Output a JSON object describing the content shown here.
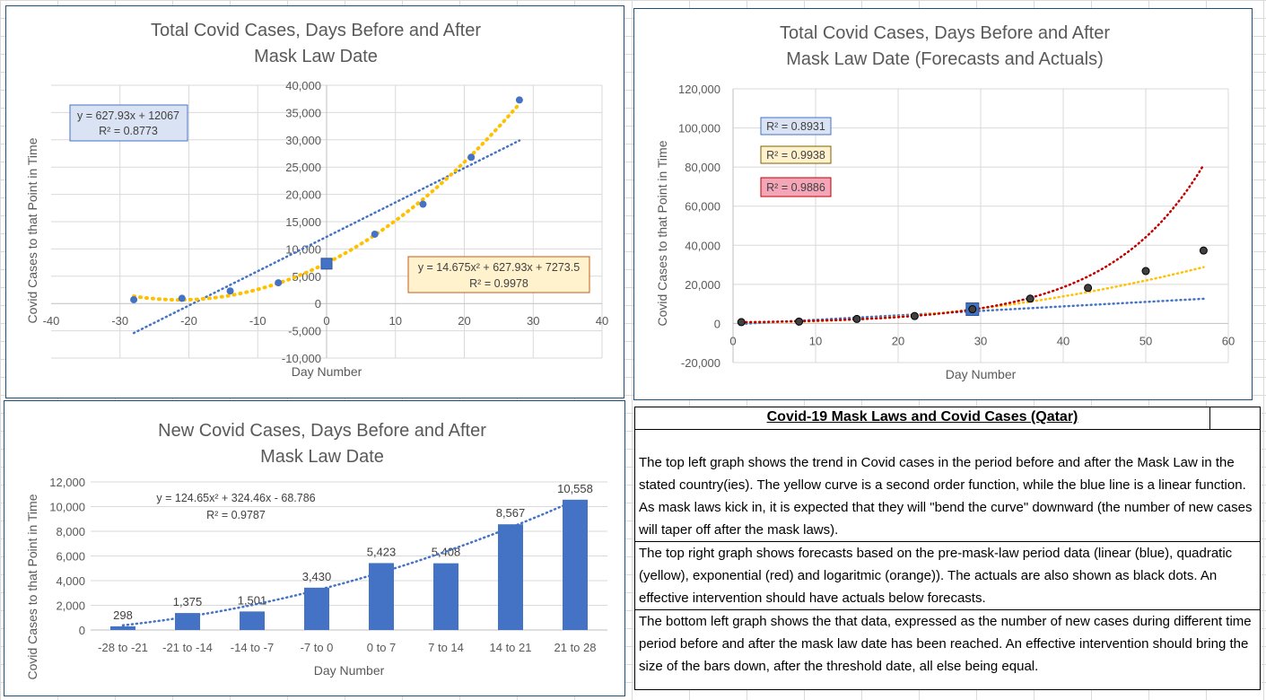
{
  "chart_data": [
    {
      "type": "scatter",
      "title": "Total Covid Cases, Days Before and After",
      "title_line2": "Mask Law Date",
      "xlabel": "Day Number",
      "ylabel": "Covid Cases to that Point in Time",
      "xlim": [
        -40,
        40
      ],
      "ylim": [
        -10000,
        40000
      ],
      "x_ticks": [
        -40,
        -30,
        -20,
        -10,
        0,
        10,
        20,
        30,
        40
      ],
      "x_tick_labels": [
        "-40",
        "-30",
        "-20",
        "-10",
        "0",
        "10",
        "20",
        "30",
        "40"
      ],
      "y_ticks": [
        -10000,
        -5000,
        0,
        5000,
        10000,
        15000,
        20000,
        25000,
        30000,
        35000,
        40000
      ],
      "y_tick_labels": [
        "-10,000",
        "-5,000",
        "0",
        "5,000",
        "10,000",
        "15,000",
        "20,000",
        "25,000",
        "30,000",
        "35,000",
        "40,000"
      ],
      "grid": true,
      "series": [
        {
          "x": [
            -28,
            -21,
            -14,
            -7,
            0,
            7,
            14,
            21,
            28
          ],
          "y": [
            700,
            950,
            2300,
            3800,
            7300,
            12700,
            18200,
            26800,
            37300
          ],
          "color": "#4472c4"
        }
      ],
      "highlight_point": {
        "x": 0,
        "y": 7300
      },
      "trendlines": [
        {
          "kind": "linear",
          "color": "#4472c4",
          "equation": "y = 627.93x + 12067",
          "r2": "R² = 0.8773",
          "label_bg": "#dae3f3",
          "label_border": "#4472c4"
        },
        {
          "kind": "polynomial",
          "color": "#ffc000",
          "equation": "y = 14.675x² + 627.93x + 7273.5",
          "r2": "R² = 0.9978",
          "label_bg": "#fff2cc",
          "label_border": "#c55a11"
        }
      ]
    },
    {
      "type": "scatter",
      "title": "Total Covid Cases, Days Before and After",
      "title_line2": "Mask Law Date (Forecasts and Actuals)",
      "xlabel": "Day Number",
      "ylabel": "Covid Cases to that Point in Time",
      "xlim": [
        0,
        60
      ],
      "ylim": [
        -20000,
        120000
      ],
      "x_ticks": [
        0,
        10,
        20,
        30,
        40,
        50,
        60
      ],
      "x_tick_labels": [
        "0",
        "10",
        "20",
        "30",
        "40",
        "50",
        "60"
      ],
      "y_ticks": [
        -20000,
        0,
        20000,
        40000,
        60000,
        80000,
        100000,
        120000
      ],
      "y_tick_labels": [
        "-20,000",
        "0",
        "20,000",
        "40,000",
        "60,000",
        "80,000",
        "100,000",
        "120,000"
      ],
      "grid": true,
      "series": [
        {
          "x": [
            1,
            8,
            15,
            22,
            29,
            36,
            43,
            50,
            57
          ],
          "y": [
            700,
            950,
            2300,
            3800,
            7300,
            12700,
            18200,
            26800,
            37300
          ],
          "color": "#404040"
        }
      ],
      "highlight_point": {
        "x": 29,
        "y": 7300
      },
      "trendlines": [
        {
          "kind": "linear",
          "color": "#4472c4",
          "r2": "R² = 0.8931",
          "label_bg": "#dae3f3",
          "label_border": "#4472c4"
        },
        {
          "kind": "polynomial",
          "color": "#ffc000",
          "r2": "R² = 0.9938",
          "label_bg": "#fff2cc",
          "label_border": "#806000"
        },
        {
          "kind": "exponential",
          "color": "#c00000",
          "r2": "R² = 0.9886",
          "label_bg": "#f4a6b8",
          "label_border": "#c00000"
        }
      ]
    },
    {
      "type": "bar",
      "title": "New Covid Cases, Days Before and After",
      "title_line2": "Mask Law Date",
      "xlabel": "Day Number",
      "ylabel": "Covid Cases to that Point in Time",
      "categories": [
        "-28 to -21",
        "-21 to -14",
        "-14 to -7",
        "-7 to 0",
        "0 to 7",
        "7 to 14",
        "14 to 21",
        "21 to 28"
      ],
      "values": [
        298,
        1375,
        1501,
        3430,
        5423,
        5408,
        8567,
        10558
      ],
      "value_labels": [
        "298",
        "1,375",
        "1,501",
        "3,430",
        "5,423",
        "5,408",
        "8,567",
        "10,558"
      ],
      "ylim": [
        0,
        12000
      ],
      "y_ticks": [
        0,
        2000,
        4000,
        6000,
        8000,
        10000,
        12000
      ],
      "y_tick_labels": [
        "0",
        "2,000",
        "4,000",
        "6,000",
        "8,000",
        "10,000",
        "12,000"
      ],
      "grid": true,
      "bar_color": "#4472c4",
      "trendline": {
        "kind": "polynomial",
        "color": "#4472c4",
        "equation": "y = 124.65x² + 324.46x - 68.786",
        "r2": "R² = 0.9787"
      }
    }
  ],
  "notes": {
    "title": "Covid-19 Mask Laws and Covid Cases (Qatar)",
    "paragraphs": [
      "The top left graph shows the trend in Covid cases in the period before and after the Mask Law in the stated country(ies).  The yellow curve is a second order function, while the blue line is a linear function.  As mask laws kick in, it is expected that they will \"bend the curve\" downward (the number of new cases will taper off after the mask laws).",
      "The top right graph shows forecasts based on the pre-mask-law period data (linear (blue), quadratic (yellow), exponential (red) and logaritmic (orange)).  The actuals are also shown as black dots.  An effective intervention should have actuals below forecasts.",
      "The bottom left graph shows the that data, expressed as the number of new cases during different time period before and after the mask law date has been reached.  An effective intervention should bring the size of the bars down, after the threshold date, all else being equal."
    ]
  }
}
